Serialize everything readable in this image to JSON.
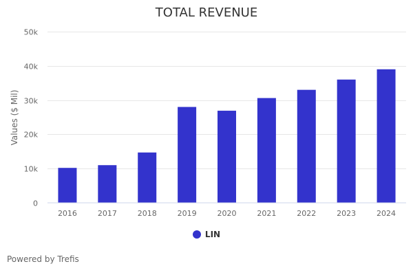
{
  "chart_data": {
    "type": "bar",
    "title": "TOTAL REVENUE",
    "xlabel": "",
    "ylabel": "Values ($ Mil)",
    "categories": [
      "2016",
      "2017",
      "2018",
      "2019",
      "2020",
      "2021",
      "2022",
      "2023",
      "2024"
    ],
    "series": [
      {
        "name": "LIN",
        "color": "#3333cc",
        "values": [
          10200,
          11000,
          14700,
          28000,
          26900,
          30600,
          33000,
          36000,
          39000
        ]
      }
    ],
    "ylim": [
      0,
      50000
    ],
    "yticks": [
      0,
      10000,
      20000,
      30000,
      40000,
      50000
    ],
    "ytick_labels": [
      "0",
      "10k",
      "20k",
      "30k",
      "40k",
      "50k"
    ],
    "grid": true,
    "legend": "bottom-center"
  },
  "credit": "Powered by Trefis"
}
